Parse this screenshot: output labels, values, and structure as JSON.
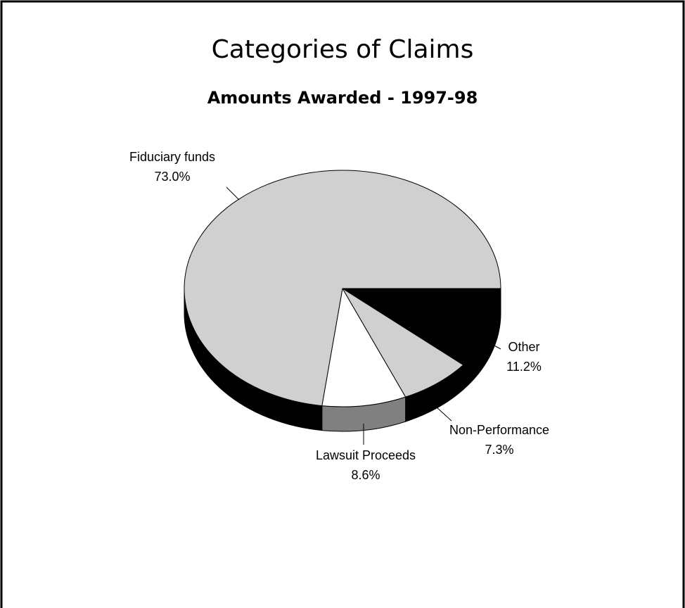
{
  "chart_data": {
    "type": "pie",
    "title": "Categories of Claims",
    "subtitle": "Amounts Awarded - 1997-98",
    "categories": [
      "Fiduciary funds",
      "Lawsuit Proceeds",
      "Non-Performance",
      "Other"
    ],
    "values": [
      73.0,
      8.6,
      7.3,
      11.2
    ],
    "value_labels": [
      "73.0%",
      "8.6%",
      "7.3%",
      "11.2%"
    ],
    "colors": [
      "#d0d0d0",
      "#ffffff",
      "#d0d0d0",
      "#000000"
    ],
    "side_colors": [
      "#000000",
      "#808080",
      "#000000",
      "#000000"
    ]
  }
}
